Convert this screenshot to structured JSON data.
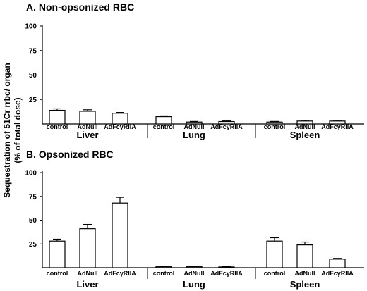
{
  "figure": {
    "ylabel_line1": "Sequestration  of 51Cr rrbc/ organ",
    "ylabel_line2": "(% of total dose)"
  },
  "chart_data": [
    {
      "type": "bar",
      "title": "A. Non-opsonized RBC",
      "ylabel": "Sequestration of 51Cr rrbc/ organ (% of total dose)",
      "ylim": [
        0,
        100
      ],
      "yticks": [
        25,
        50,
        75,
        100
      ],
      "grid": false,
      "groups": [
        {
          "name": "Liver",
          "categories": [
            "control",
            "AdNull",
            "AdFcγRIIA"
          ],
          "values": [
            14,
            13,
            11
          ],
          "errors": [
            1.5,
            1.5,
            0.8
          ]
        },
        {
          "name": "Lung",
          "categories": [
            "control",
            "AdNull",
            "AdFcγRIIA"
          ],
          "values": [
            7.5,
            2,
            2.5
          ],
          "errors": [
            0.8,
            0.6,
            0.6
          ]
        },
        {
          "name": "Spleen",
          "categories": [
            "control",
            "AdNull",
            "AdFcγRIIA"
          ],
          "values": [
            2,
            3,
            3
          ],
          "errors": [
            0.6,
            0.8,
            0.8
          ]
        }
      ]
    },
    {
      "type": "bar",
      "title": "B. Opsonized RBC",
      "ylabel": "Sequestration of 51Cr rrbc/ organ (% of total dose)",
      "ylim": [
        0,
        100
      ],
      "yticks": [
        25,
        50,
        75,
        100
      ],
      "grid": false,
      "groups": [
        {
          "name": "Liver",
          "categories": [
            "control",
            "AdNull",
            "AdFcγRIIA"
          ],
          "values": [
            28,
            41,
            68
          ],
          "errors": [
            2,
            4.5,
            6
          ]
        },
        {
          "name": "Lung",
          "categories": [
            "control",
            "AdNull",
            "AdFcγRIIA"
          ],
          "values": [
            1,
            1,
            0.8
          ],
          "errors": [
            0.7,
            0.7,
            0.6
          ]
        },
        {
          "name": "Spleen",
          "categories": [
            "control",
            "AdNull",
            "AdFcγRIIA"
          ],
          "values": [
            28,
            24,
            9
          ],
          "errors": [
            3.5,
            3,
            0.8
          ]
        }
      ]
    }
  ]
}
